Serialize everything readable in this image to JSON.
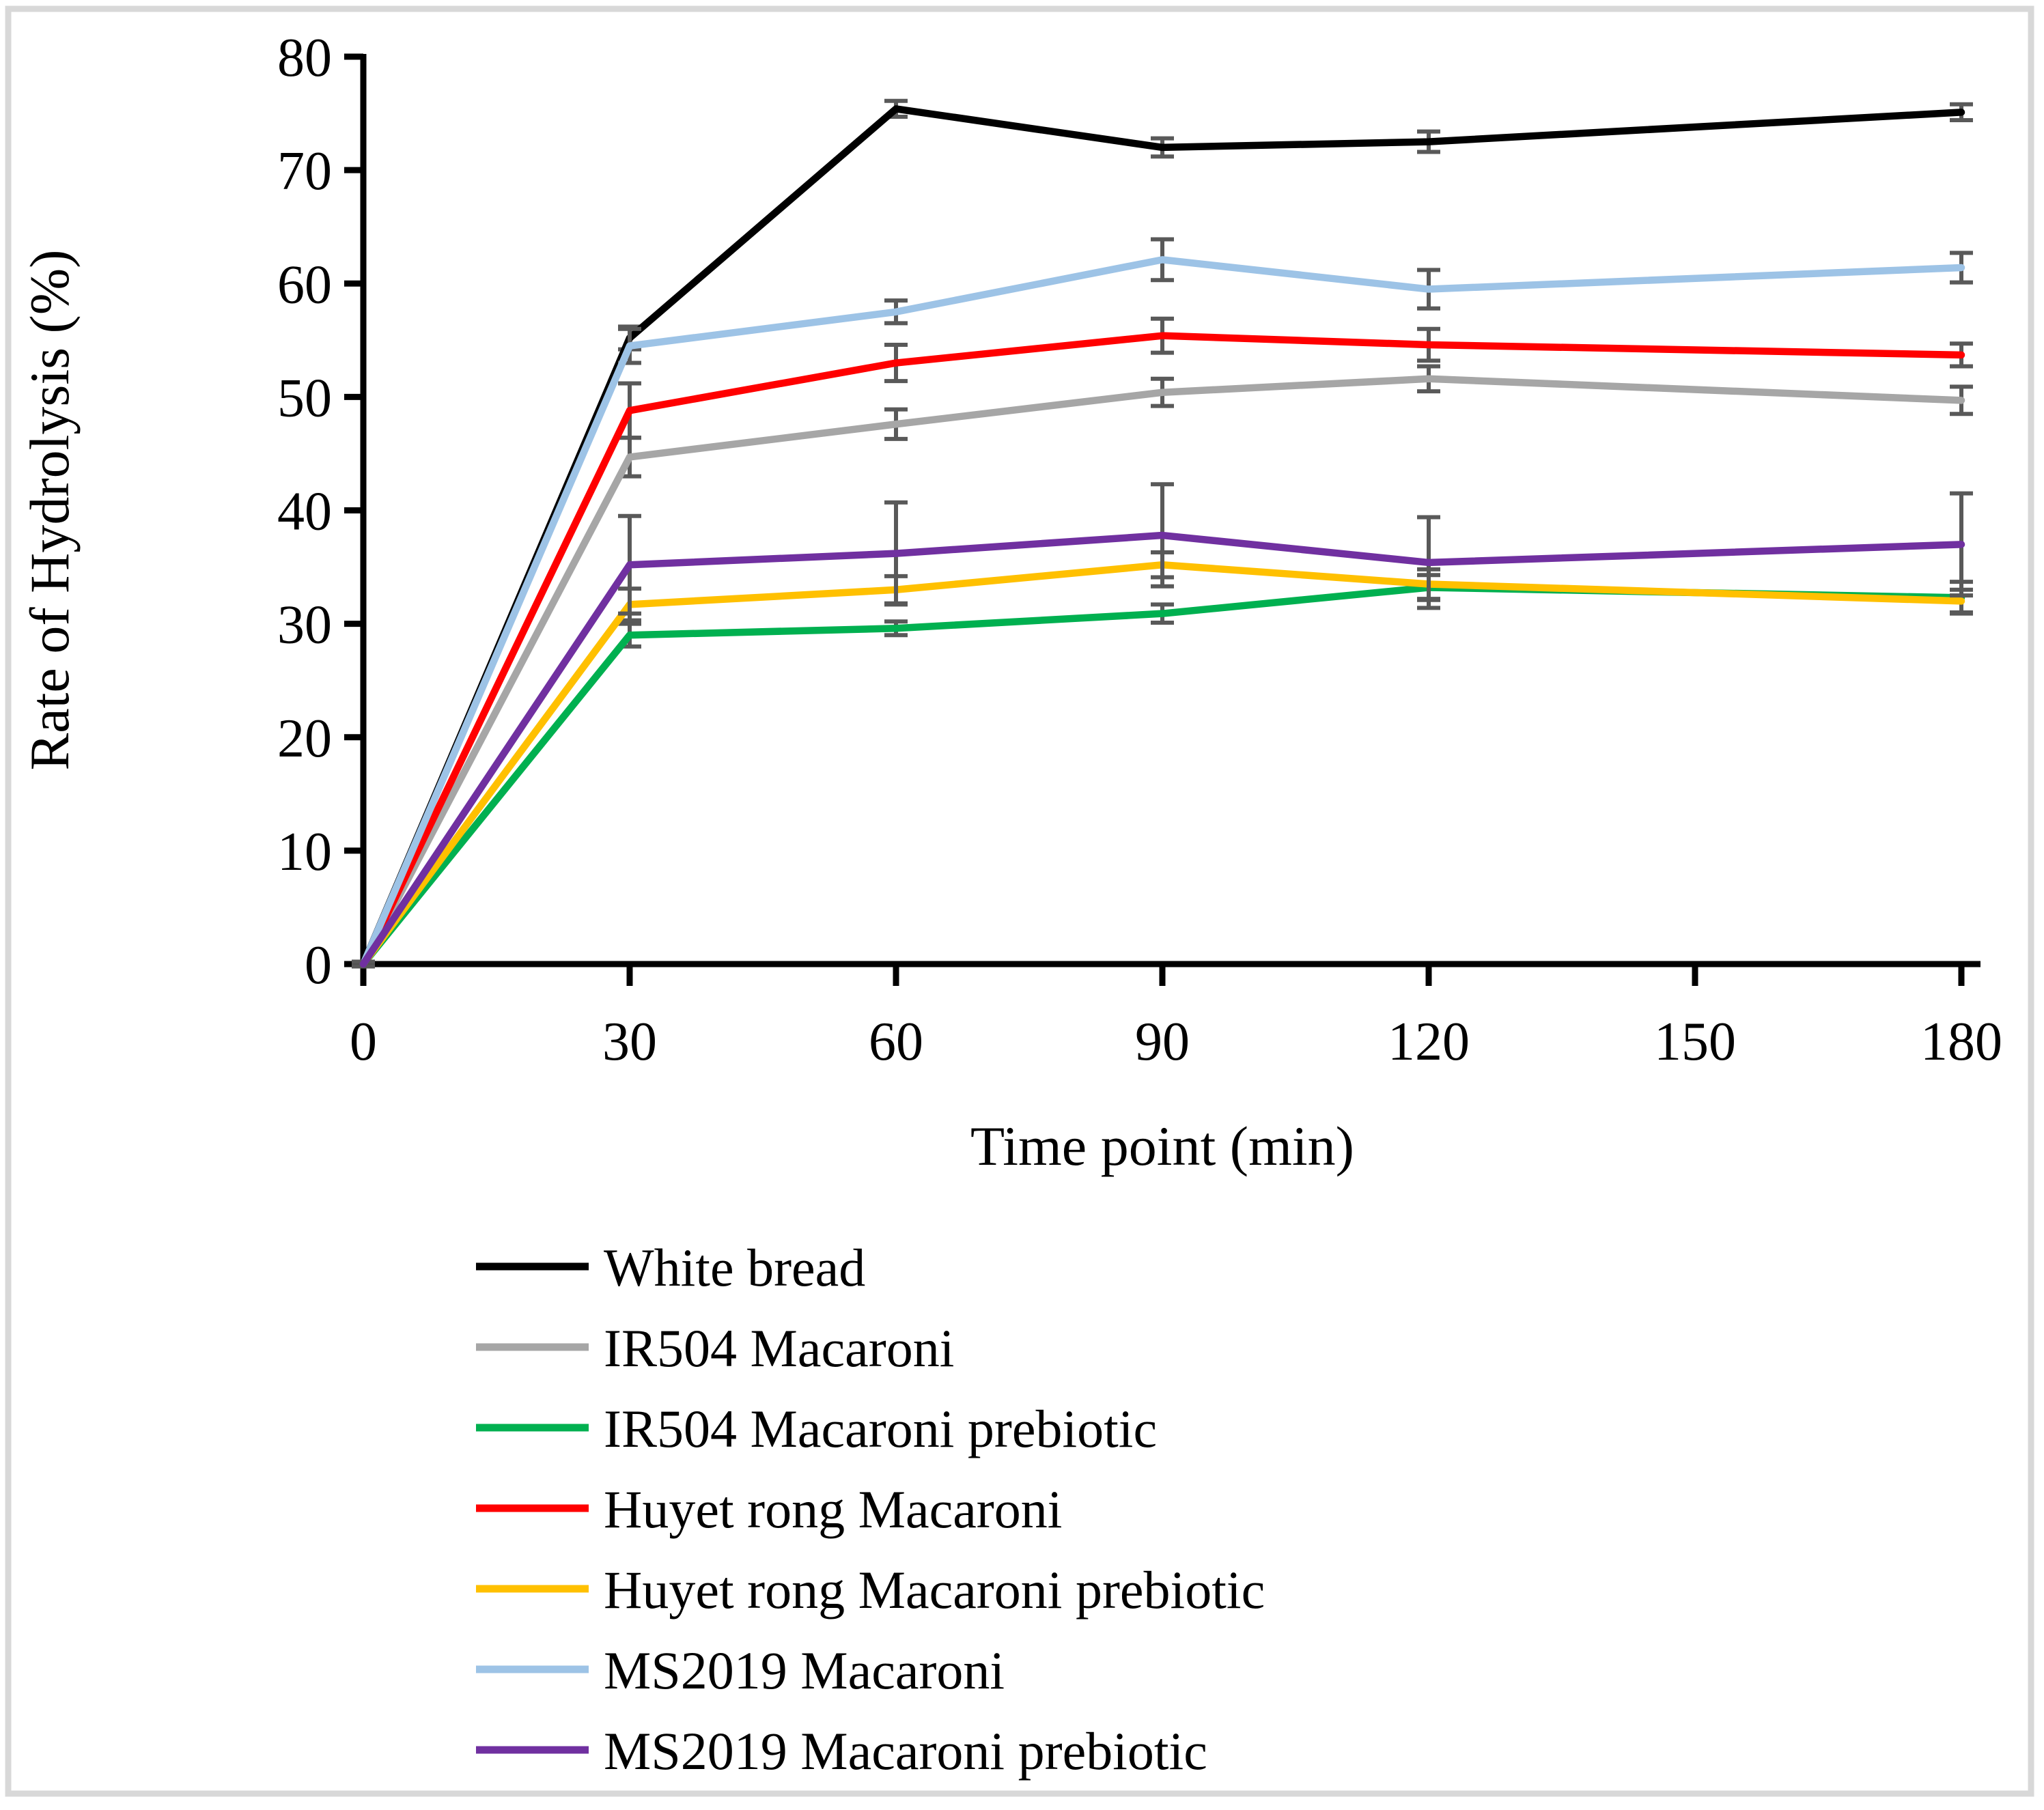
{
  "figure": {
    "background_color": "#ffffff",
    "border_color": "#d8d8d8"
  },
  "chart_data": {
    "type": "line",
    "title": "",
    "xlabel": "Time point (min)",
    "ylabel": "Rate of Hydrolysis (%)",
    "x": [
      0,
      30,
      60,
      90,
      120,
      180
    ],
    "x_ticks": [
      0,
      30,
      60,
      90,
      120,
      150,
      180
    ],
    "xlim": [
      0,
      180
    ],
    "y_ticks": [
      0,
      10,
      20,
      30,
      40,
      50,
      60,
      70,
      80
    ],
    "ylim": [
      0,
      80
    ],
    "grid": false,
    "markers": false,
    "legend_position": "bottom-left",
    "axis_color": "#000000",
    "error_bar_color": "#595959",
    "series": [
      {
        "name": "White bread",
        "color": "#000000",
        "values": [
          0,
          55.2,
          75.4,
          72.0,
          72.5,
          75.1
        ],
        "errors": [
          0.2,
          1.0,
          0.7,
          0.8,
          0.9,
          0.7
        ]
      },
      {
        "name": "IR504 Macaroni",
        "color": "#A6A6A6",
        "values": [
          0,
          44.7,
          47.6,
          50.4,
          51.6,
          49.7
        ],
        "errors": [
          0.2,
          1.7,
          1.3,
          1.2,
          1.1,
          1.2
        ]
      },
      {
        "name": "IR504 Macaroni prebiotic",
        "color": "#00B050",
        "values": [
          0,
          29.0,
          29.6,
          30.9,
          33.2,
          32.3
        ],
        "errors": [
          0.2,
          1.0,
          0.6,
          0.8,
          1.1,
          1.4
        ]
      },
      {
        "name": "Huyet rong Macaroni",
        "color": "#FF0000",
        "values": [
          0,
          48.8,
          53.0,
          55.4,
          54.6,
          53.7
        ],
        "errors": [
          0.2,
          2.4,
          1.6,
          1.5,
          1.4,
          1.0
        ]
      },
      {
        "name": "Huyet rong Macaroni prebiotic",
        "color": "#FFC000",
        "values": [
          0,
          31.7,
          33.0,
          35.2,
          33.5,
          32.0
        ],
        "errors": [
          0.2,
          1.4,
          1.2,
          1.1,
          1.3,
          1.0
        ]
      },
      {
        "name": "MS2019 Macaroni",
        "color": "#9DC3E6",
        "values": [
          0,
          54.5,
          57.5,
          62.1,
          59.5,
          61.4
        ],
        "errors": [
          0.2,
          1.5,
          1.0,
          1.8,
          1.7,
          1.3
        ]
      },
      {
        "name": "MS2019 Macaroni prebiotic",
        "color": "#7030A0",
        "values": [
          0,
          35.2,
          36.2,
          37.8,
          35.4,
          37.0
        ],
        "errors": [
          0.2,
          4.3,
          4.5,
          4.5,
          4.0,
          4.5
        ]
      }
    ]
  }
}
